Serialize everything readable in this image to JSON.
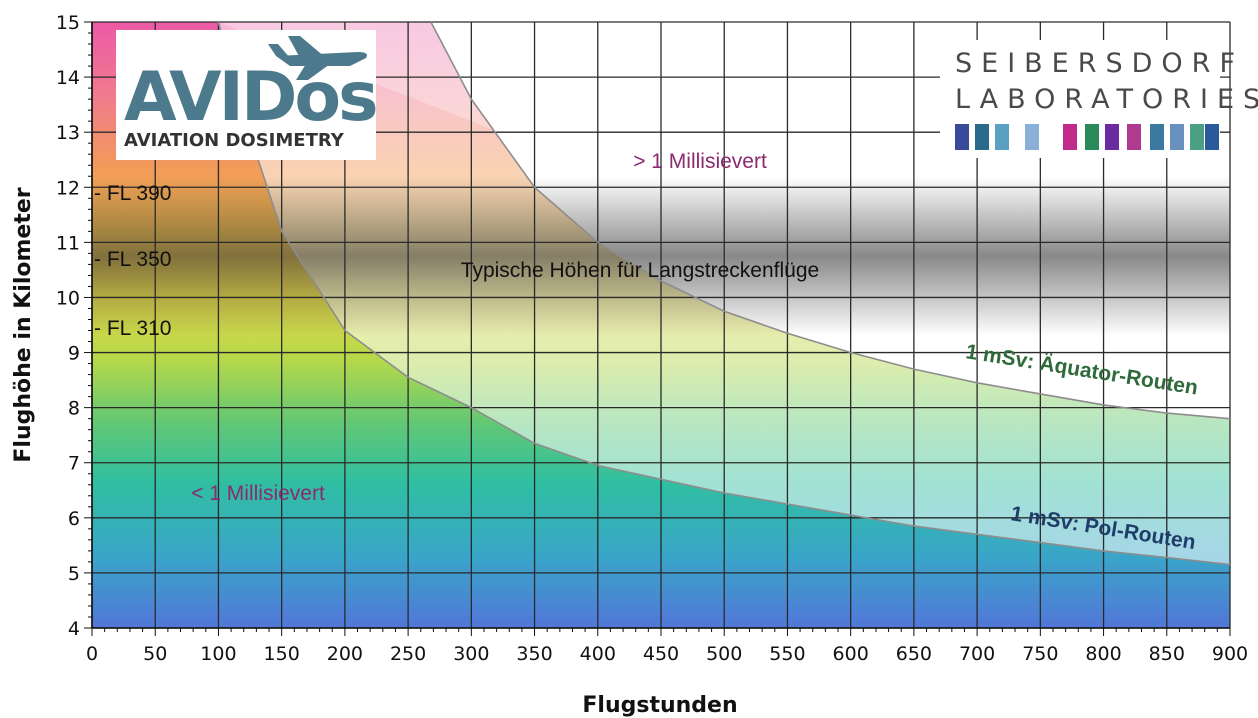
{
  "chart_data": {
    "type": "area",
    "xlabel": "Flugstunden",
    "ylabel": "Flughöhe in Kilometer",
    "xlim": [
      0,
      900
    ],
    "ylim": [
      4,
      15
    ],
    "x_ticks": [
      "0",
      "50",
      "100",
      "150",
      "200",
      "250",
      "300",
      "350",
      "400",
      "450",
      "500",
      "550",
      "600",
      "650",
      "700",
      "750",
      "800",
      "850",
      "900"
    ],
    "y_ticks": [
      "4",
      "5",
      "6",
      "7",
      "8",
      "9",
      "10",
      "11",
      "12",
      "13",
      "14",
      "15"
    ],
    "grid": true,
    "flight_levels": [
      {
        "label": "- FL 390",
        "altitude": 11.9
      },
      {
        "label": "- FL 350",
        "altitude": 10.7
      },
      {
        "label": "- FL 310",
        "altitude": 9.45
      }
    ],
    "band": {
      "label": "Typische Höhen für Langstreckenflüge",
      "from": 9.3,
      "to": 12.2
    },
    "series": [
      {
        "name": "1 mSv: Äquator-Routen",
        "x": [
          268,
          300,
          350,
          400,
          450,
          500,
          550,
          600,
          650,
          700,
          750,
          800,
          850,
          900
        ],
        "y": [
          15,
          13.6,
          12.0,
          11.0,
          10.3,
          9.75,
          9.35,
          9.0,
          8.7,
          8.45,
          8.25,
          8.05,
          7.9,
          7.8
        ]
      },
      {
        "name": "1 mSv: Pol-Routen",
        "x": [
          100,
          120,
          150,
          200,
          250,
          300,
          350,
          400,
          450,
          500,
          550,
          600,
          650,
          700,
          750,
          800,
          850,
          900
        ],
        "y": [
          15,
          13.3,
          11.2,
          9.4,
          8.55,
          8.0,
          7.35,
          6.95,
          6.7,
          6.45,
          6.25,
          6.05,
          5.85,
          5.7,
          5.55,
          5.4,
          5.28,
          5.15
        ]
      }
    ],
    "annotations": {
      "above": "> 1 Millisievert",
      "below": "< 1 Millisievert"
    },
    "colors": {
      "above": "#8a2b6e",
      "below": "#8a2b6e",
      "aequator": "#2f6b3a",
      "pol": "#1f3d6b"
    }
  },
  "logos": {
    "avidos": {
      "name": "AVIDos",
      "subtitle": "AVIATION DOSIMETRY"
    },
    "seibersdorf": {
      "line1": "SEIBERSDORF",
      "line2": "LABORATORIES"
    }
  }
}
